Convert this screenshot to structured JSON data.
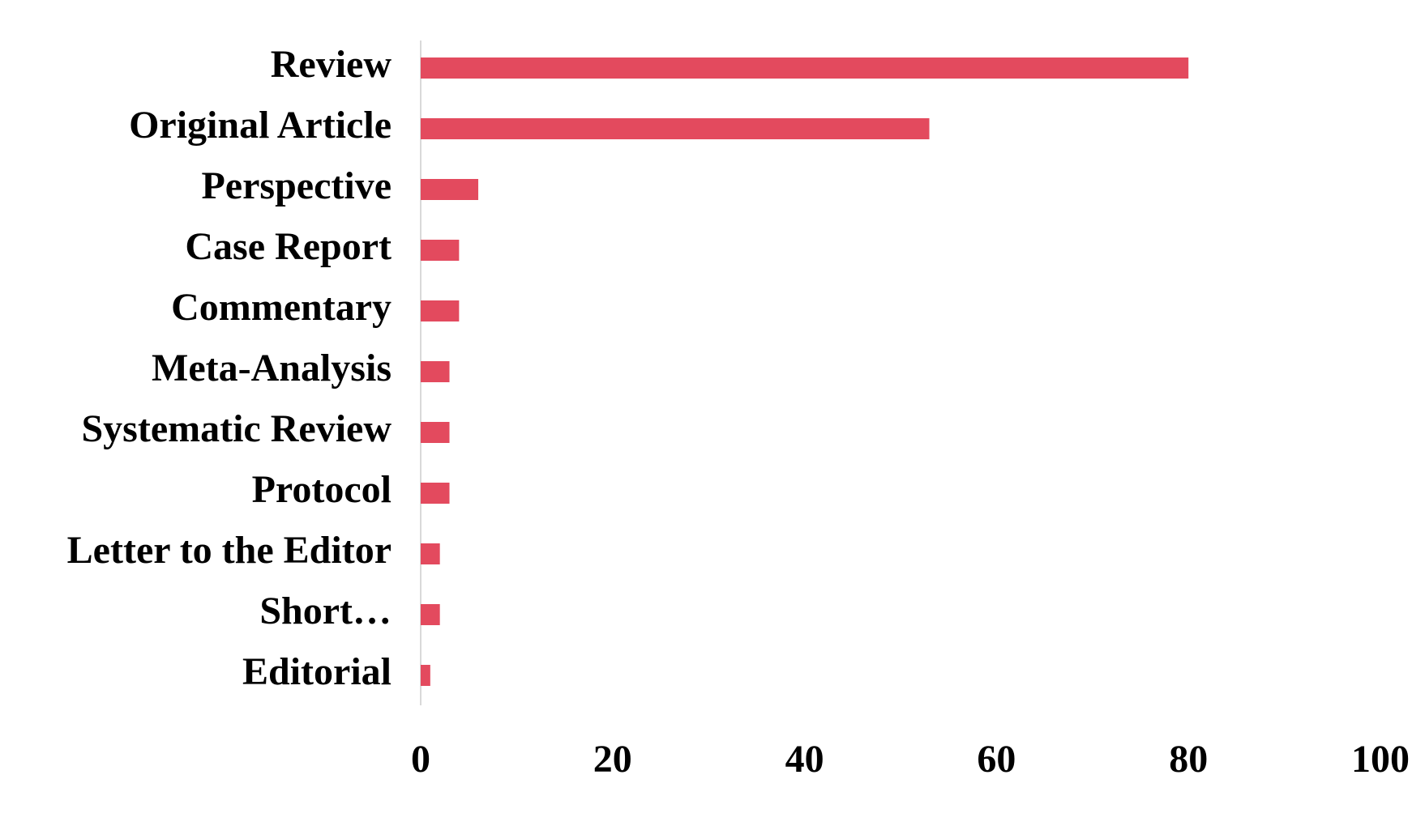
{
  "chart_data": {
    "type": "barh",
    "categories": [
      "Review",
      "Original Article",
      "Perspective",
      "Case Report",
      "Commentary",
      "Meta-Analysis",
      "Systematic Review",
      "Protocol",
      "Letter to the Editor",
      "Short…",
      "Editorial"
    ],
    "values": [
      80,
      53,
      6,
      4,
      4,
      3,
      3,
      3,
      2,
      2,
      1
    ],
    "color": "#e34a5e",
    "xlim": [
      0,
      100
    ],
    "xticks": [
      0,
      20,
      40,
      60,
      80,
      100
    ],
    "grid": false
  }
}
